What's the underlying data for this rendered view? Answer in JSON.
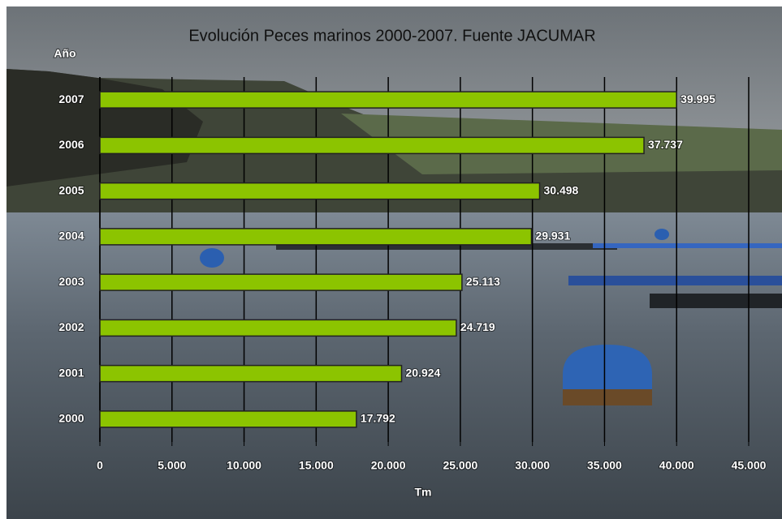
{
  "chart_data": {
    "type": "bar",
    "title": "Evolución Peces marinos 2000-2007. Fuente JACUMAR",
    "y_label": "Año",
    "x_label": "Tm",
    "categories": [
      "2007",
      "2006",
      "2005",
      "2004",
      "2003",
      "2002",
      "2001",
      "2000"
    ],
    "values": [
      39995,
      37737,
      30498,
      29931,
      25113,
      24719,
      20924,
      17792
    ],
    "value_labels": [
      "39.995",
      "37.737",
      "30.498",
      "29.931",
      "25.113",
      "24.719",
      "20.924",
      "17.792"
    ],
    "color": "#8cc400",
    "xlim": [
      0,
      45000
    ],
    "xticks": [
      0,
      {
        "value": 5000,
        "label": "5.000"
      },
      {
        "value": 10000,
        "label": "10.000"
      },
      {
        "value": 15000,
        "label": "15.000"
      },
      {
        "value": 20000,
        "label": "20.000"
      },
      {
        "value": 25000,
        "label": "25.000"
      },
      {
        "value": 30000,
        "label": "30.000"
      },
      {
        "value": 35000,
        "label": "35.000"
      },
      {
        "value": 40000,
        "label": "40.000"
      },
      {
        "value": 45000,
        "label": "45.000"
      }
    ],
    "grid": true
  }
}
